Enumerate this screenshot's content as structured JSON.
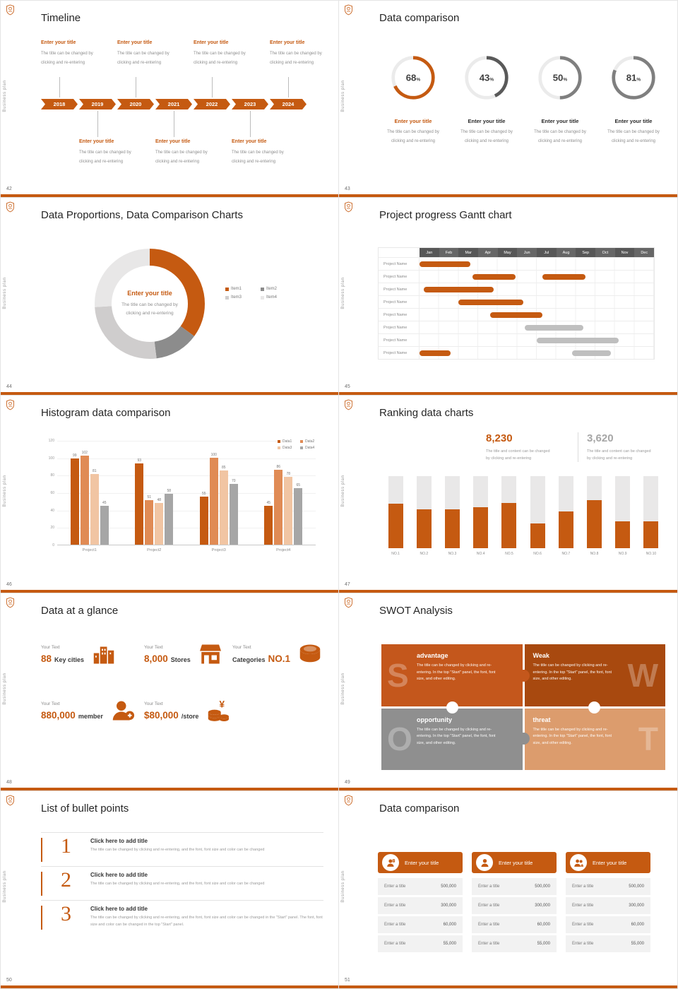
{
  "theme": {
    "accent_orange": "#C55A11",
    "gray_dark": "#595959",
    "gray_mid": "#8C8C8C",
    "gray_light": "#BFBFBF",
    "track_gray": "#E7E6E6"
  },
  "common": {
    "vertical_text": "Business plan"
  },
  "slides": {
    "timeline": {
      "page": "42",
      "title": "Timeline",
      "years": [
        "2018",
        "2019",
        "2020",
        "2021",
        "2022",
        "2023",
        "2024"
      ],
      "item_title": "Enter your title",
      "item_desc": [
        "The title can be changed by",
        "clicking and re-entering"
      ],
      "top_items": [
        0,
        2,
        4,
        6
      ],
      "bottom_items": [
        1,
        3,
        5
      ]
    },
    "rings": {
      "page": "43",
      "title": "Data comparison",
      "item_title": "Enter your title",
      "item_desc": [
        "The title can be changed by",
        "clicking and re-entering"
      ],
      "chart_data": {
        "type": "donut-progress",
        "values": [
          68,
          43,
          50,
          81
        ],
        "unit": "%",
        "colors": [
          "#C55A11",
          "#595959",
          "#7F7F7F",
          "#7F7F7F"
        ]
      }
    },
    "donut": {
      "page": "44",
      "title": "Data Proportions, Data Comparison Charts",
      "center_title": "Enter your title",
      "center_desc": [
        "The title can be changed by",
        "clicking and re-entering"
      ],
      "chart_data": {
        "type": "pie",
        "labels": [
          "Item1",
          "Item2",
          "Item3",
          "Item4"
        ],
        "values": [
          35,
          13,
          26,
          26
        ],
        "colors": [
          "#C55A11",
          "#8C8C8C",
          "#CFCDCD",
          "#E8E7E7"
        ]
      }
    },
    "gantt": {
      "page": "45",
      "title": "Project progress Gantt chart",
      "chart_data": {
        "type": "gantt",
        "months": [
          "Jan",
          "Feb",
          "Mar",
          "Apr",
          "May",
          "Jun",
          "Jul",
          "Aug",
          "Sep",
          "Oct",
          "Nov",
          "Dec"
        ],
        "rows": [
          {
            "label": "Project Name",
            "bars": [
              {
                "start": 0,
                "len": 2.6,
                "color": "#C55A11"
              }
            ]
          },
          {
            "label": "Project Name",
            "bars": [
              {
                "start": 2.7,
                "len": 2.2,
                "color": "#C55A11"
              },
              {
                "start": 6.3,
                "len": 2.2,
                "color": "#C55A11"
              }
            ]
          },
          {
            "label": "Project Name",
            "bars": [
              {
                "start": 0.2,
                "len": 3.6,
                "color": "#C55A11"
              }
            ]
          },
          {
            "label": "Project Name",
            "bars": [
              {
                "start": 2,
                "len": 3.3,
                "color": "#C55A11"
              }
            ]
          },
          {
            "label": "Project Name",
            "bars": [
              {
                "start": 3.6,
                "len": 2.7,
                "color": "#C55A11"
              }
            ]
          },
          {
            "label": "Project Name",
            "bars": [
              {
                "start": 5.4,
                "len": 3,
                "color": "#BFBFBF"
              }
            ]
          },
          {
            "label": "Project Name",
            "bars": [
              {
                "start": 6,
                "len": 4.2,
                "color": "#BFBFBF"
              }
            ]
          },
          {
            "label": "Project Name",
            "bars": [
              {
                "start": 0,
                "len": 1.6,
                "color": "#C55A11"
              },
              {
                "start": 7.8,
                "len": 2,
                "color": "#BFBFBF"
              }
            ]
          }
        ]
      }
    },
    "histogram": {
      "page": "46",
      "title": "Histogram data comparison",
      "chart_data": {
        "type": "bar",
        "categories": [
          "Project1",
          "Project2",
          "Project3",
          "Project4"
        ],
        "series": [
          {
            "name": "Data1",
            "color": "#C55A11",
            "values": [
              99,
              93,
              55,
              45
            ]
          },
          {
            "name": "Data2",
            "color": "#E08B55",
            "values": [
              102,
              51,
              100,
              86
            ]
          },
          {
            "name": "Data3",
            "color": "#F1C5A3",
            "values": [
              81,
              48,
              85,
              78
            ]
          },
          {
            "name": "Data4",
            "color": "#A6A6A6",
            "values": [
              45,
              58,
              70,
              65
            ]
          }
        ],
        "ylim": [
          0,
          120
        ],
        "yticks": [
          0,
          20,
          40,
          60,
          80,
          100,
          120
        ]
      }
    },
    "ranking": {
      "page": "47",
      "title": "Ranking data charts",
      "stats": [
        {
          "value": "8,230",
          "color": "#C55A11",
          "desc": [
            "The title and content can be changed",
            "by clicking and re-entering"
          ]
        },
        {
          "value": "3,620",
          "color": "#A6A6A6",
          "desc": [
            "The title and content can be changed",
            "by clicking and re-entering"
          ]
        }
      ],
      "chart_data": {
        "type": "bar",
        "categories": [
          "NO.1",
          "NO.2",
          "NO.3",
          "NO.4",
          "NO.5",
          "NO.6",
          "NO.7",
          "NO.8",
          "NO.9",
          "NO.10"
        ],
        "values": [
          62,
          54,
          54,
          57,
          63,
          34,
          51,
          67,
          37,
          37
        ],
        "max": 100,
        "bar_color": "#C55A11",
        "track_color": "#E9E8E8"
      }
    },
    "glance": {
      "page": "48",
      "title": "Data at a glance",
      "items": [
        {
          "label": "Your Text",
          "value": "88",
          "unit": "Key cities",
          "value_first": true,
          "icon": "city-icon"
        },
        {
          "label": "Your Text",
          "value": "8,000",
          "unit": "Stores",
          "value_first": true,
          "icon": "store-icon"
        },
        {
          "label": "Your Text",
          "value": "NO.1",
          "unit": "Categories",
          "value_first": false,
          "icon": "categories-icon"
        },
        {
          "label": "Your Text",
          "value": "880,000",
          "unit": "member",
          "value_first": true,
          "icon": "member-icon"
        },
        {
          "label": "Your Text",
          "value": "$80,000",
          "unit": "/store",
          "value_first": true,
          "icon": "coins-icon"
        }
      ]
    },
    "swot": {
      "page": "49",
      "title": "SWOT Analysis",
      "body": "The title can be changed by clicking and re-entering. In the top \"Start\" panel, the font, font size, and other editing.",
      "pieces": [
        {
          "letter": "S",
          "heading": "advantage",
          "bg": "#C4571C",
          "letter_side": "left"
        },
        {
          "letter": "W",
          "heading": "Weak",
          "bg": "#A8490F",
          "letter_side": "right"
        },
        {
          "letter": "O",
          "heading": "opportunity",
          "bg": "#8F8F8F",
          "letter_side": "left"
        },
        {
          "letter": "T",
          "heading": "threat",
          "bg": "#DC9C6D",
          "letter_side": "right"
        }
      ]
    },
    "bullets": {
      "page": "50",
      "title": "List of bullet points",
      "heading": "Click here to add title",
      "items": [
        {
          "num": "1",
          "text": "The title can be changed by clicking and re-entering, and the font, font size and color can be changed"
        },
        {
          "num": "2",
          "text": "The title can be changed by clicking and re-entering, and the font, font size and color can be changed"
        },
        {
          "num": "3",
          "text": "The title can be changed by clicking and re-entering, and the font, font size and color can be changed in the \"Start\" panel. The font, font size and color can be changed in the top \"Start\" panel."
        }
      ]
    },
    "cards": {
      "page": "51",
      "title": "Data comparison",
      "card_header": "Enter your title",
      "row_label": "Enter a title",
      "row_values": [
        "500,000",
        "300,000",
        "60,000",
        "55,000"
      ],
      "icons": [
        "person-card-icon",
        "person-icon",
        "people-icon"
      ]
    }
  }
}
